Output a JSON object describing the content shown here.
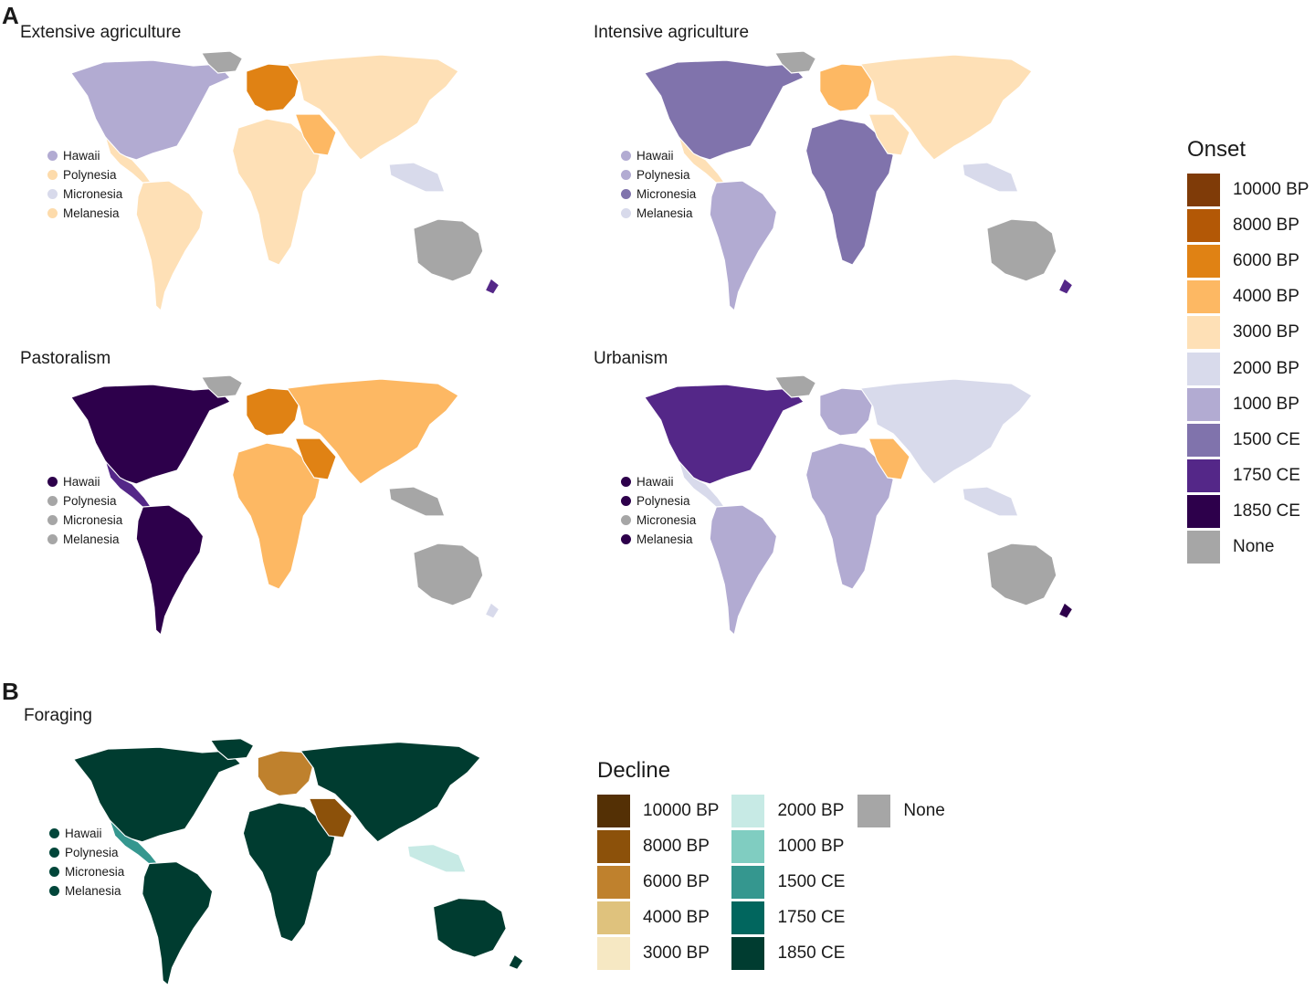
{
  "panels": {
    "a_letter": "A",
    "b_letter": "B"
  },
  "maps": [
    {
      "id": "extensive",
      "title": "Extensive agriculture",
      "islands": [
        {
          "name": "Hawaii",
          "color": "#b2abd2"
        },
        {
          "name": "Polynesia",
          "color": "#fddbab"
        },
        {
          "name": "Micronesia",
          "color": "#d8daeb"
        },
        {
          "name": "Melanesia",
          "color": "#fddbab"
        }
      ]
    },
    {
      "id": "intensive",
      "title": "Intensive agriculture",
      "islands": [
        {
          "name": "Hawaii",
          "color": "#b2abd2"
        },
        {
          "name": "Polynesia",
          "color": "#b2abd2"
        },
        {
          "name": "Micronesia",
          "color": "#8073ac"
        },
        {
          "name": "Melanesia",
          "color": "#d8daeb"
        }
      ]
    },
    {
      "id": "pastoralism",
      "title": "Pastoralism",
      "islands": [
        {
          "name": "Hawaii",
          "color": "#2d004b"
        },
        {
          "name": "Polynesia",
          "color": "#a6a6a6"
        },
        {
          "name": "Micronesia",
          "color": "#a6a6a6"
        },
        {
          "name": "Melanesia",
          "color": "#a6a6a6"
        }
      ]
    },
    {
      "id": "urbanism",
      "title": "Urbanism",
      "islands": [
        {
          "name": "Hawaii",
          "color": "#2d004b"
        },
        {
          "name": "Polynesia",
          "color": "#2d004b"
        },
        {
          "name": "Micronesia",
          "color": "#a6a6a6"
        },
        {
          "name": "Melanesia",
          "color": "#2d004b"
        }
      ]
    },
    {
      "id": "foraging",
      "title": "Foraging",
      "islands": [
        {
          "name": "Hawaii",
          "color": "#01463a"
        },
        {
          "name": "Polynesia",
          "color": "#01463a"
        },
        {
          "name": "Micronesia",
          "color": "#01463a"
        },
        {
          "name": "Melanesia",
          "color": "#01463a"
        }
      ]
    }
  ],
  "onset_legend": {
    "title": "Onset",
    "items": [
      {
        "label": "10000 BP",
        "color": "#7f3b08"
      },
      {
        "label": "8000 BP",
        "color": "#b35806"
      },
      {
        "label": "6000 BP",
        "color": "#e08214"
      },
      {
        "label": "4000 BP",
        "color": "#fdb863"
      },
      {
        "label": "3000 BP",
        "color": "#fee0b6"
      },
      {
        "label": "2000 BP",
        "color": "#d8daeb"
      },
      {
        "label": "1000 BP",
        "color": "#b2abd2"
      },
      {
        "label": "1500 CE",
        "color": "#8073ac"
      },
      {
        "label": "1750 CE",
        "color": "#542788"
      },
      {
        "label": "1850 CE",
        "color": "#2d004b"
      },
      {
        "label": "None",
        "color": "#a6a6a6"
      }
    ]
  },
  "decline_legend": {
    "title": "Decline",
    "columns": [
      [
        {
          "label": "10000 BP",
          "color": "#543005"
        },
        {
          "label": "8000 BP",
          "color": "#8c510a"
        },
        {
          "label": "6000 BP",
          "color": "#bf812d"
        },
        {
          "label": "4000 BP",
          "color": "#dfc27d"
        },
        {
          "label": "3000 BP",
          "color": "#f6e8c3"
        }
      ],
      [
        {
          "label": "2000 BP",
          "color": "#c7eae5"
        },
        {
          "label": "1000 BP",
          "color": "#80cdc1"
        },
        {
          "label": "1500 CE",
          "color": "#35978f"
        },
        {
          "label": "1750 CE",
          "color": "#01665e"
        },
        {
          "label": "1850 CE",
          "color": "#003c30"
        }
      ],
      [
        {
          "label": "None",
          "color": "#a6a6a6"
        }
      ]
    ]
  }
}
